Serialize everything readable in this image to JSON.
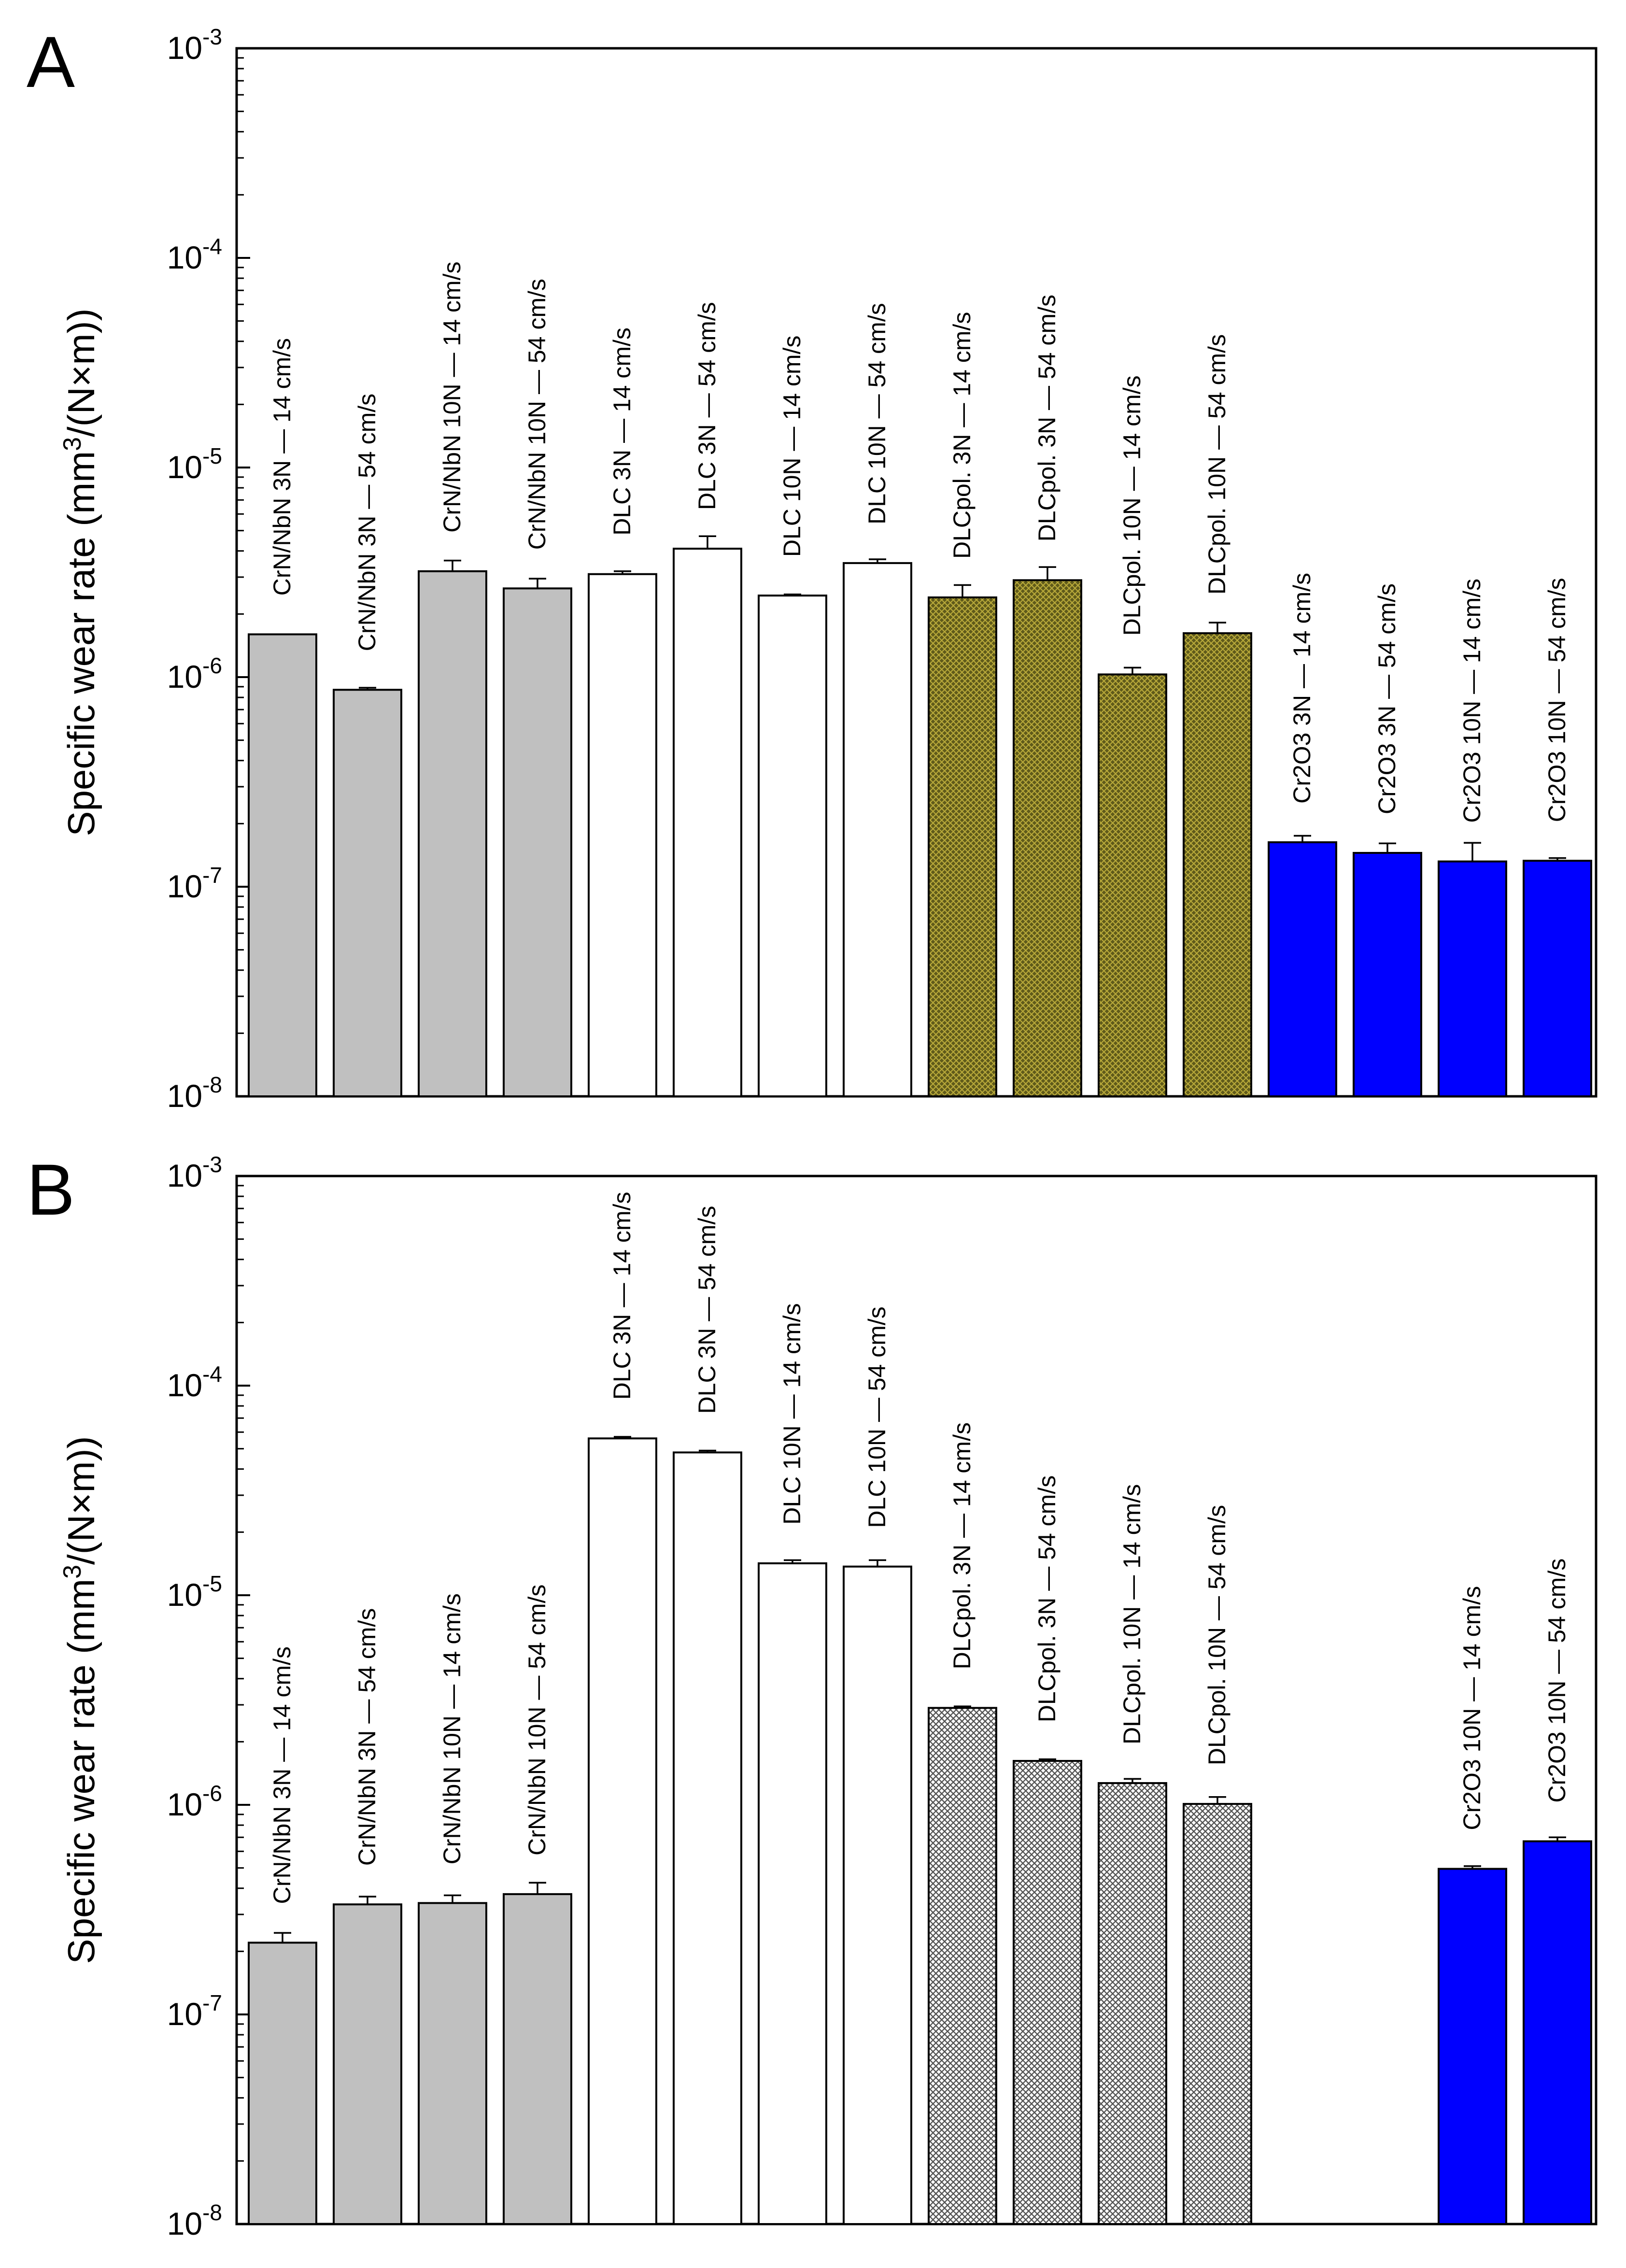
{
  "colors": {
    "gray": "#c0c0c0",
    "white": "#ffffff",
    "olive": "#5f5a1a",
    "hatchLight": "#c9c9c9",
    "blue": "#0000ff",
    "black": "#000000"
  },
  "chart_data": [
    {
      "type": "bar",
      "panel": "A",
      "ylabel_pre": "Specific wear rate (mm",
      "ylabel_sup": "3",
      "ylabel_post": "/(N×m))",
      "yscale": "log",
      "ylim": [
        1e-08,
        0.001
      ],
      "yticks": [
        {
          "value": 0.001,
          "base": "10",
          "exp": "-3"
        },
        {
          "value": 0.0001,
          "base": "10",
          "exp": "-4"
        },
        {
          "value": 1e-05,
          "base": "10",
          "exp": "-5"
        },
        {
          "value": 1e-06,
          "base": "10",
          "exp": "-6"
        },
        {
          "value": 1e-07,
          "base": "10",
          "exp": "-7"
        },
        {
          "value": 1e-08,
          "base": "10",
          "exp": "-8"
        }
      ],
      "bars": [
        {
          "label": "CrN/NbN 3N — 14 cm/s",
          "value": 1.6e-06,
          "err": 0,
          "group": "gray"
        },
        {
          "label": "CrN/NbN 3N — 54 cm/s",
          "value": 8.7e-07,
          "err": 2e-08,
          "group": "gray"
        },
        {
          "label": "CrN/NbN 10N — 14 cm/s",
          "value": 3.2e-06,
          "err": 4e-07,
          "group": "gray"
        },
        {
          "label": "CrN/NbN 10N — 54 cm/s",
          "value": 2.65e-06,
          "err": 3e-07,
          "group": "gray"
        },
        {
          "label": "DLC 3N — 14 cm/s",
          "value": 3.1e-06,
          "err": 1e-07,
          "group": "white"
        },
        {
          "label": "DLC    3N — 54 cm/s",
          "value": 4.1e-06,
          "err": 6e-07,
          "group": "white"
        },
        {
          "label": "DLC 10N — 14 cm/s",
          "value": 2.45e-06,
          "err": 3e-08,
          "group": "white"
        },
        {
          "label": "DLC 10N — 54 cm/s",
          "value": 3.5e-06,
          "err": 1.5e-07,
          "group": "white"
        },
        {
          "label": "DLCpol. 3N — 14 cm/s",
          "value": 2.4e-06,
          "err": 3.5e-07,
          "group": "olive"
        },
        {
          "label": "DLCpol. 3N — 54 cm/s",
          "value": 2.9e-06,
          "err": 4.5e-07,
          "group": "olive"
        },
        {
          "label": "DLCpol. 10N — 14 cm/s",
          "value": 1.03e-06,
          "err": 8e-08,
          "group": "olive"
        },
        {
          "label": "DLCpol. 10N — 54 cm/s",
          "value": 1.62e-06,
          "err": 2e-07,
          "group": "olive"
        },
        {
          "label": "Cr2O3 3N — 14 cm/s",
          "value": 1.63e-07,
          "err": 1.2e-08,
          "group": "blue"
        },
        {
          "label": "Cr2O3 3N — 54 cm/s",
          "value": 1.45e-07,
          "err": 1.6e-08,
          "group": "blue"
        },
        {
          "label": "Cr2O3    10N — 14 cm/s",
          "value": 1.32e-07,
          "err": 3e-08,
          "group": "blue"
        },
        {
          "label": "Cr2O3 10N — 54 cm/s",
          "value": 1.33e-07,
          "err": 4e-09,
          "group": "blue"
        }
      ]
    },
    {
      "type": "bar",
      "panel": "B",
      "ylabel_pre": "Specific wear rate (mm",
      "ylabel_sup": "3",
      "ylabel_post": "/(N×m))",
      "yscale": "log",
      "ylim": [
        1e-08,
        0.001
      ],
      "yticks": [
        {
          "value": 0.001,
          "base": "10",
          "exp": "-3"
        },
        {
          "value": 0.0001,
          "base": "10",
          "exp": "-4"
        },
        {
          "value": 1e-05,
          "base": "10",
          "exp": "-5"
        },
        {
          "value": 1e-06,
          "base": "10",
          "exp": "-6"
        },
        {
          "value": 1e-07,
          "base": "10",
          "exp": "-7"
        },
        {
          "value": 1e-08,
          "base": "10",
          "exp": "-8"
        }
      ],
      "bars": [
        {
          "label": "CrN/NbN 3N — 14 cm/s",
          "value": 2.2e-07,
          "err": 2.5e-08,
          "group": "gray"
        },
        {
          "label": "CrN/NbN    3N — 54 cm/s",
          "value": 3.35e-07,
          "err": 3e-08,
          "group": "gray"
        },
        {
          "label": "CrN/NbN 10N — 14 cm/s",
          "value": 3.4e-07,
          "err": 3e-08,
          "group": "gray"
        },
        {
          "label": "CrN/NbN 10N — 54 cm/s",
          "value": 3.75e-07,
          "err": 5e-08,
          "group": "gray"
        },
        {
          "label": "DLC 3N — 14 cm/s",
          "value": 5.6e-05,
          "err": 1e-06,
          "group": "white"
        },
        {
          "label": "DLC 3N — 54 cm/s",
          "value": 4.8e-05,
          "err": 1e-06,
          "group": "white"
        },
        {
          "label": "DLC 10N — 14 cm/s",
          "value": 1.42e-05,
          "err": 5e-07,
          "group": "white"
        },
        {
          "label": "DLC 10N — 54 cm/s",
          "value": 1.37e-05,
          "err": 1e-06,
          "group": "white"
        },
        {
          "label": "DLCpol. 3N — 14 cm/s",
          "value": 2.9e-06,
          "err": 5e-08,
          "group": "hatch"
        },
        {
          "label": "DLCpol. 3N — 54 cm/s",
          "value": 1.62e-06,
          "err": 3e-08,
          "group": "hatch"
        },
        {
          "label": "DLCpol. 10N — 14 cm/s",
          "value": 1.27e-06,
          "err": 6e-08,
          "group": "hatch"
        },
        {
          "label": "DLCpol. 10N — 54 cm/s",
          "value": 1.01e-06,
          "err": 8e-08,
          "group": "hatch"
        },
        {
          "label": "",
          "value": null,
          "err": 0,
          "group": "none"
        },
        {
          "label": "",
          "value": null,
          "err": 0,
          "group": "none"
        },
        {
          "label": "Cr2O3    10N — 14 cm/s",
          "value": 4.95e-07,
          "err": 1.5e-08,
          "group": "blue"
        },
        {
          "label": "Cr2O3 10N — 54 cm/s",
          "value": 6.7e-07,
          "err": 3e-08,
          "group": "blue"
        }
      ]
    }
  ]
}
